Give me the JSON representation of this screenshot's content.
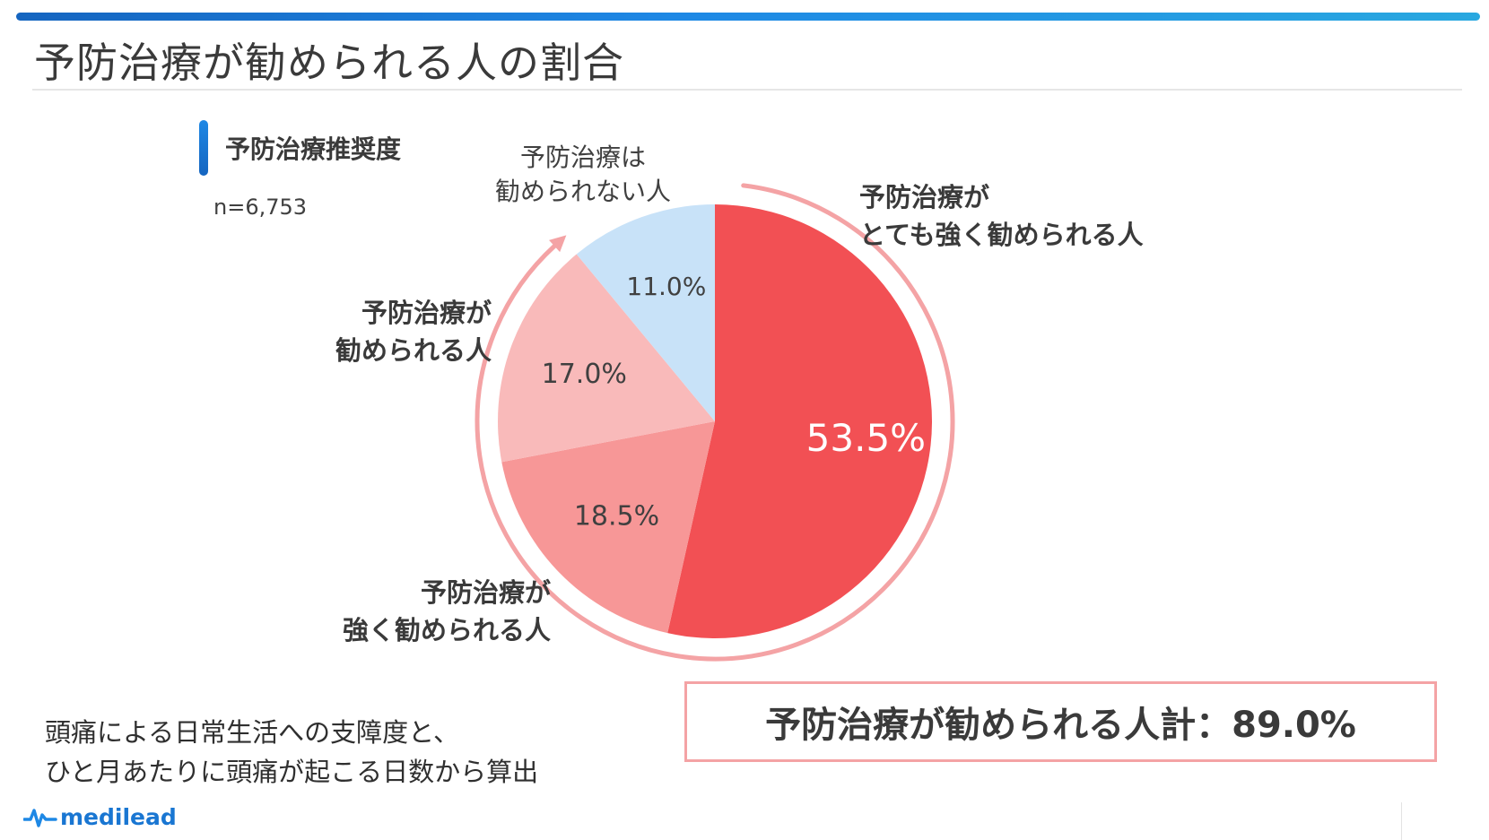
{
  "header": {
    "title": "予防治療が勧められる人の割合"
  },
  "section": {
    "title": "予防治療推奨度",
    "sample_size": "n=6,753"
  },
  "chart_data": {
    "type": "pie",
    "start": "12 o'clock",
    "direction": "clockwise",
    "slices": [
      {
        "label": "予防治療がとても強く勧められる人",
        "label_lines": [
          "予防治療が",
          "とても強く勧められる人"
        ],
        "value": 53.5,
        "display": "53.5%",
        "color": "#f25054"
      },
      {
        "label": "予防治療が強く勧められる人",
        "label_lines": [
          "予防治療が",
          "強く勧められる人"
        ],
        "value": 18.5,
        "display": "18.5%",
        "color": "#f79797"
      },
      {
        "label": "予防治療が勧められる人",
        "label_lines": [
          "予防治療が",
          "勧められる人"
        ],
        "value": 17.0,
        "display": "17.0%",
        "color": "#f9baba"
      },
      {
        "label": "予防治療は勧められない人",
        "label_lines": [
          "予防治療は",
          "勧められない人"
        ],
        "value": 11.0,
        "display": "11.0%",
        "color": "#c8e2f8"
      }
    ],
    "total_text": "予防治療が勧められる人計：89.0%",
    "arc_color": "#f4a3a5"
  },
  "footnote": {
    "lines": [
      "頭痛による日常生活への支障度と、",
      "ひと月あたりに頭痛が起こる日数から算出"
    ]
  },
  "brand": {
    "logo_text": "medilead",
    "logo_icon": "pulse-icon",
    "colors": {
      "accent": "#1e88e5",
      "logo": "#1976d2"
    }
  }
}
